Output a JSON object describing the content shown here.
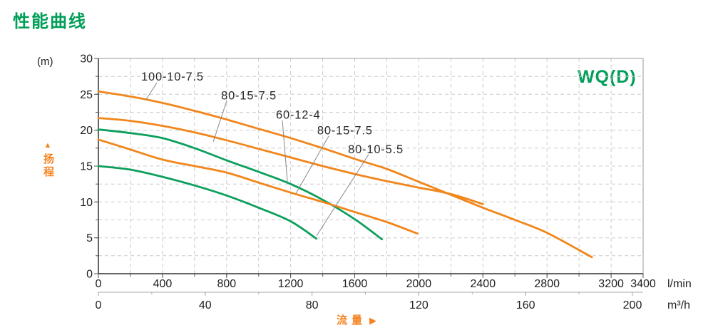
{
  "page": {
    "title": "性能曲线"
  },
  "icons": {
    "up_arrow": "▲",
    "right_arrow": "▶"
  },
  "colors": {
    "title_green": "#009e58",
    "green": "#0d9f5d",
    "orange": "#f1861b",
    "axis_label_orange": "#f58220",
    "grid": "#cccccc",
    "box": "#999999",
    "axis": "#333333",
    "tick_text": "#1f1f1f",
    "leader": "#888888",
    "annotation_text": "#2a2a2a"
  },
  "chart_data": {
    "type": "line",
    "title": "性能曲线",
    "watermark": "WQ(D)",
    "grid": "dashed",
    "y_axis": {
      "unit": "(m)",
      "label": "扬程",
      "min": 0,
      "max": 30,
      "major_ticks": [
        0,
        5,
        10,
        15,
        20,
        25,
        30
      ],
      "minor_step": 2.5,
      "grid_step": 2.5
    },
    "x_axis_lmin": {
      "unit": "l/min",
      "min": 0,
      "max": 3400,
      "major_ticks": [
        0,
        400,
        800,
        1200,
        1600,
        2000,
        2400,
        2800,
        3200,
        3400
      ],
      "minor_step": 200,
      "grid_step": 200
    },
    "x_axis_m3h": {
      "unit": "m³/h",
      "label": "流量",
      "min": 0,
      "max": 200,
      "major_ticks": [
        0,
        40,
        80,
        120,
        160,
        200
      ],
      "minor_step": 20,
      "lmin_per_unit": 16.6667
    },
    "series": [
      {
        "name": "100-10-7.5",
        "color": "orange",
        "points": [
          [
            0,
            25.4
          ],
          [
            200,
            24.7
          ],
          [
            400,
            23.8
          ],
          [
            600,
            22.7
          ],
          [
            800,
            21.5
          ],
          [
            1000,
            20.2
          ],
          [
            1200,
            18.9
          ],
          [
            1400,
            17.5
          ],
          [
            1600,
            16.0
          ],
          [
            1800,
            14.6
          ],
          [
            2000,
            12.8
          ],
          [
            2200,
            11.0
          ],
          [
            2400,
            9.2
          ],
          [
            2600,
            7.5
          ],
          [
            2800,
            5.7
          ],
          [
            3080,
            2.3
          ]
        ]
      },
      {
        "name": "80-15-7.5",
        "color": "orange",
        "points": [
          [
            0,
            21.7
          ],
          [
            200,
            21.3
          ],
          [
            400,
            20.6
          ],
          [
            600,
            19.7
          ],
          [
            800,
            18.6
          ],
          [
            1000,
            17.4
          ],
          [
            1200,
            16.2
          ],
          [
            1400,
            15.0
          ],
          [
            1600,
            13.9
          ],
          [
            1800,
            12.9
          ],
          [
            2000,
            12.0
          ],
          [
            2200,
            11.1
          ],
          [
            2400,
            9.7
          ]
        ]
      },
      {
        "name": "60-12-4",
        "color": "green",
        "points": [
          [
            0,
            20.1
          ],
          [
            200,
            19.6
          ],
          [
            400,
            18.9
          ],
          [
            600,
            17.5
          ],
          [
            800,
            15.8
          ],
          [
            1000,
            14.2
          ],
          [
            1200,
            12.5
          ],
          [
            1400,
            10.3
          ],
          [
            1600,
            7.6
          ],
          [
            1770,
            4.8
          ]
        ]
      },
      {
        "name": "80-15-7.5",
        "color": "orange",
        "points": [
          [
            0,
            18.7
          ],
          [
            200,
            17.3
          ],
          [
            400,
            15.9
          ],
          [
            600,
            15.0
          ],
          [
            800,
            14.1
          ],
          [
            1000,
            12.7
          ],
          [
            1200,
            11.3
          ],
          [
            1400,
            10.0
          ],
          [
            1600,
            8.6
          ],
          [
            1800,
            7.2
          ],
          [
            1990,
            5.6
          ]
        ]
      },
      {
        "name": "80-10-5.5",
        "color": "green",
        "points": [
          [
            0,
            15.0
          ],
          [
            200,
            14.5
          ],
          [
            400,
            13.5
          ],
          [
            600,
            12.3
          ],
          [
            800,
            10.9
          ],
          [
            1000,
            9.2
          ],
          [
            1200,
            7.3
          ],
          [
            1360,
            4.9
          ]
        ]
      }
    ],
    "annotations": [
      {
        "text": "100-10-7.5",
        "anchor_q": 267,
        "anchor_h": 26.9,
        "leader": [
          [
            365,
            26.6
          ],
          [
            294,
            24.15
          ]
        ]
      },
      {
        "text": "80-15-7.5",
        "anchor_q": 766,
        "anchor_h": 24.3,
        "leader": [
          [
            801,
            24.1
          ],
          [
            717,
            18.4
          ]
        ]
      },
      {
        "text": "60-12-4",
        "anchor_q": 1108,
        "anchor_h": 21.6,
        "leader": [
          [
            1148,
            21.35
          ],
          [
            1180,
            12.7
          ]
        ]
      },
      {
        "text": "80-15-7.5",
        "anchor_q": 1366,
        "anchor_h": 19.4,
        "leader": [
          [
            1438,
            19.2
          ],
          [
            1233,
            11.2
          ]
        ]
      },
      {
        "text": "80-10-5.5",
        "anchor_q": 1558,
        "anchor_h": 16.8,
        "leader": [
          [
            1686,
            16.6
          ],
          [
            1362,
            5.27
          ]
        ]
      }
    ]
  }
}
